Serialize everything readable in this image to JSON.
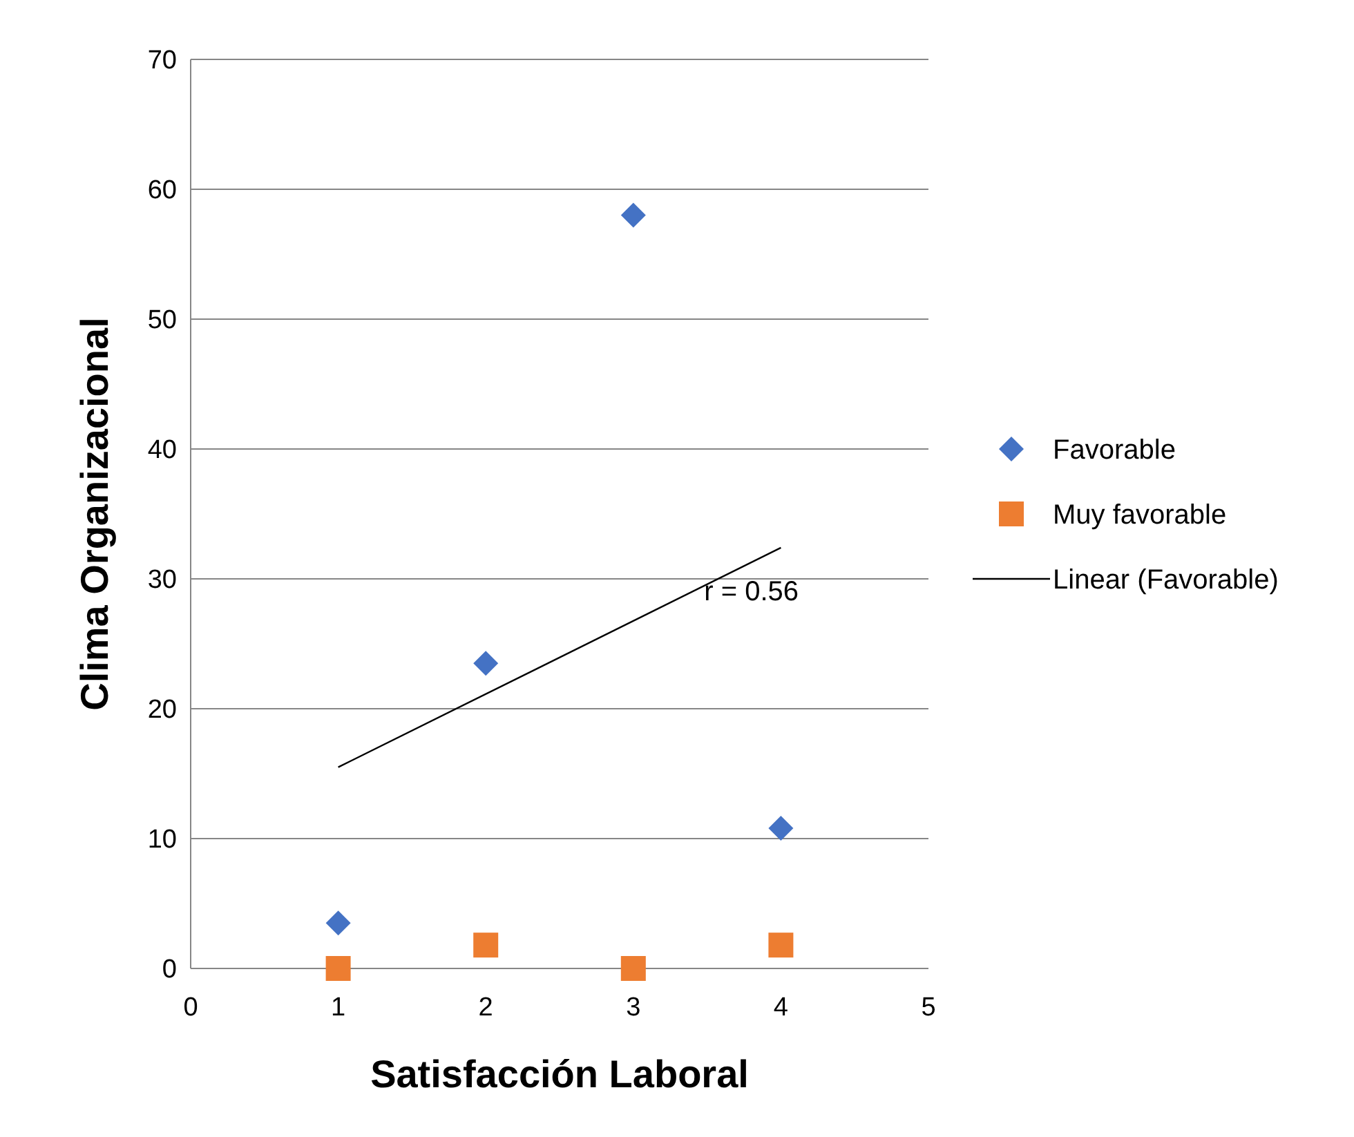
{
  "chart_data": {
    "type": "scatter",
    "xlabel": "Satisfacción Laboral",
    "ylabel": "Clima Organizacional",
    "x": [
      1,
      2,
      3,
      4
    ],
    "series": [
      {
        "name": "Favorable",
        "color": "#4472c4",
        "marker": "diamond",
        "values": [
          3.5,
          23.5,
          58,
          10.8
        ]
      },
      {
        "name": "Muy favorable",
        "color": "#ed7d31",
        "marker": "square",
        "values": [
          0,
          1.8,
          0,
          1.8
        ]
      },
      {
        "name": "Linear (Favorable)",
        "type": "line",
        "color": "#000000",
        "marker": "none",
        "x": [
          1,
          4
        ],
        "values": [
          15.5,
          32.4
        ]
      }
    ],
    "xlim": [
      0,
      5
    ],
    "xticks": [
      0,
      1,
      2,
      3,
      4,
      5
    ],
    "ylim": [
      0,
      70
    ],
    "yticks": [
      0,
      10,
      20,
      30,
      40,
      50,
      60,
      70
    ],
    "grid": "y",
    "legend": "right",
    "annotations": [
      "r = 0.56"
    ]
  }
}
